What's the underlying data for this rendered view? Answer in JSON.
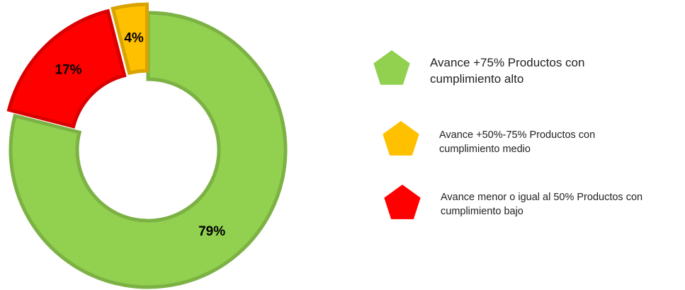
{
  "chart_data": {
    "type": "donut",
    "series": [
      {
        "name": "Avance +75% Productos con cumplimiento alto",
        "color": "#92d050",
        "values": [
          79
        ],
        "value_labels": [
          "79%"
        ]
      },
      {
        "name": "Avance menor o igual al 50% Productos con cumplimiento bajo",
        "color": "#ff0000",
        "values": [
          17
        ],
        "value_labels": [
          "17%"
        ]
      },
      {
        "name": "Avance +50%-75% Productos con cumplimiento medio",
        "color": "#ffc000",
        "values": [
          4
        ],
        "value_labels": [
          "4%"
        ]
      }
    ],
    "legend_order": [
      0,
      2,
      1
    ],
    "legend": "right"
  }
}
